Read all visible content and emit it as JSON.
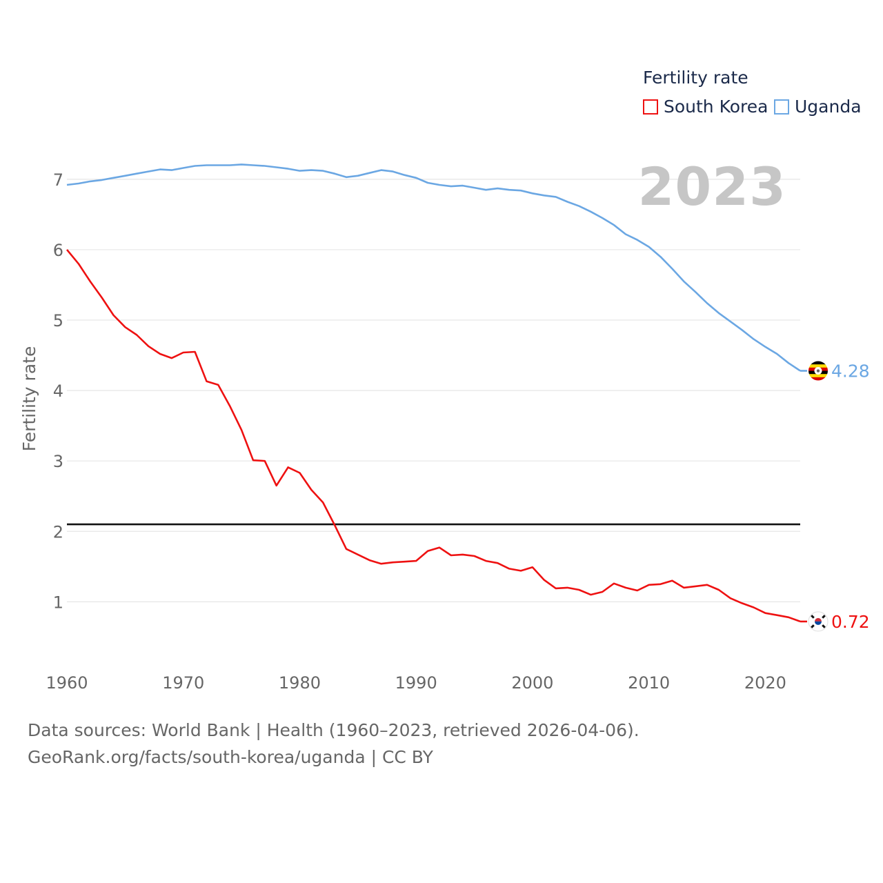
{
  "chart_data": {
    "type": "line",
    "legend_title": "Fertility rate",
    "ylabel": "Fertility rate",
    "xlabel": "",
    "xlim": [
      1960,
      2023
    ],
    "ylim": [
      0.2,
      7.9
    ],
    "x_ticks": [
      1960,
      1970,
      1980,
      1990,
      2000,
      2010,
      2020
    ],
    "y_ticks": [
      1,
      2,
      3,
      4,
      5,
      6,
      7
    ],
    "reference_line": 2.1,
    "year_label": "2023",
    "legend_position": "top-right",
    "x": [
      1960,
      1961,
      1962,
      1963,
      1964,
      1965,
      1966,
      1967,
      1968,
      1969,
      1970,
      1971,
      1972,
      1973,
      1974,
      1975,
      1976,
      1977,
      1978,
      1979,
      1980,
      1981,
      1982,
      1983,
      1984,
      1985,
      1986,
      1987,
      1988,
      1989,
      1990,
      1991,
      1992,
      1993,
      1994,
      1995,
      1996,
      1997,
      1998,
      1999,
      2000,
      2001,
      2002,
      2003,
      2004,
      2005,
      2006,
      2007,
      2008,
      2009,
      2010,
      2011,
      2012,
      2013,
      2014,
      2015,
      2016,
      2017,
      2018,
      2019,
      2020,
      2021,
      2022,
      2023
    ],
    "series": [
      {
        "name": "South Korea",
        "color": "#ee1111",
        "end_label": "0.72",
        "flag": "south-korea-flag",
        "values": [
          6.0,
          5.8,
          5.55,
          5.32,
          5.07,
          4.9,
          4.79,
          4.63,
          4.52,
          4.46,
          4.54,
          4.55,
          4.13,
          4.08,
          3.78,
          3.44,
          3.01,
          3.0,
          2.65,
          2.91,
          2.83,
          2.59,
          2.41,
          2.09,
          1.75,
          1.67,
          1.59,
          1.54,
          1.56,
          1.57,
          1.58,
          1.72,
          1.77,
          1.66,
          1.67,
          1.65,
          1.58,
          1.55,
          1.47,
          1.44,
          1.49,
          1.31,
          1.19,
          1.2,
          1.17,
          1.1,
          1.14,
          1.26,
          1.2,
          1.16,
          1.24,
          1.25,
          1.3,
          1.2,
          1.22,
          1.24,
          1.17,
          1.05,
          0.98,
          0.92,
          0.84,
          0.81,
          0.78,
          0.72
        ]
      },
      {
        "name": "Uganda",
        "color": "#6ba7e3",
        "end_label": "4.28",
        "flag": "uganda-flag",
        "values": [
          6.92,
          6.94,
          6.97,
          6.99,
          7.02,
          7.05,
          7.08,
          7.11,
          7.14,
          7.13,
          7.16,
          7.19,
          7.2,
          7.2,
          7.2,
          7.21,
          7.2,
          7.19,
          7.17,
          7.15,
          7.12,
          7.13,
          7.12,
          7.08,
          7.03,
          7.05,
          7.09,
          7.13,
          7.11,
          7.06,
          7.02,
          6.95,
          6.92,
          6.9,
          6.91,
          6.88,
          6.85,
          6.87,
          6.85,
          6.84,
          6.8,
          6.77,
          6.75,
          6.68,
          6.62,
          6.54,
          6.45,
          6.35,
          6.22,
          6.14,
          6.04,
          5.9,
          5.73,
          5.55,
          5.4,
          5.24,
          5.1,
          4.98,
          4.86,
          4.73,
          4.62,
          4.52,
          4.39,
          4.28
        ]
      }
    ]
  },
  "footer": {
    "line1": "Data sources: World Bank | Health (1960–2023, retrieved 2026-04-06).",
    "line2": "GeoRank.org/facts/south-korea/uganda | CC BY"
  }
}
